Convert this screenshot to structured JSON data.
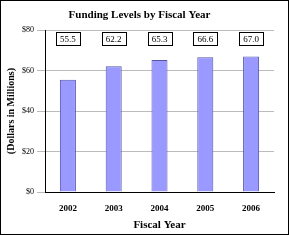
{
  "chart_data": {
    "type": "bar",
    "title": "Funding Levels by Fiscal Year",
    "x_label": "Fiscal Year",
    "y_label": "(Dollars in Millions)",
    "categories": [
      "2002",
      "2003",
      "2004",
      "2005",
      "2006"
    ],
    "values": [
      55.5,
      62.2,
      65.3,
      66.6,
      67.0
    ],
    "value_labels": [
      "55.5",
      "62.2",
      "65.3",
      "66.6",
      "67.0"
    ],
    "color": "#9999ff",
    "ylim": [
      0,
      80
    ],
    "yticks": [
      {
        "value": 0,
        "label": "$0"
      },
      {
        "value": 20,
        "label": "$20"
      },
      {
        "value": 40,
        "label": "$40"
      },
      {
        "value": 60,
        "label": "$60"
      },
      {
        "value": 80,
        "label": "$80"
      }
    ],
    "grid": true,
    "data_labels": true
  }
}
